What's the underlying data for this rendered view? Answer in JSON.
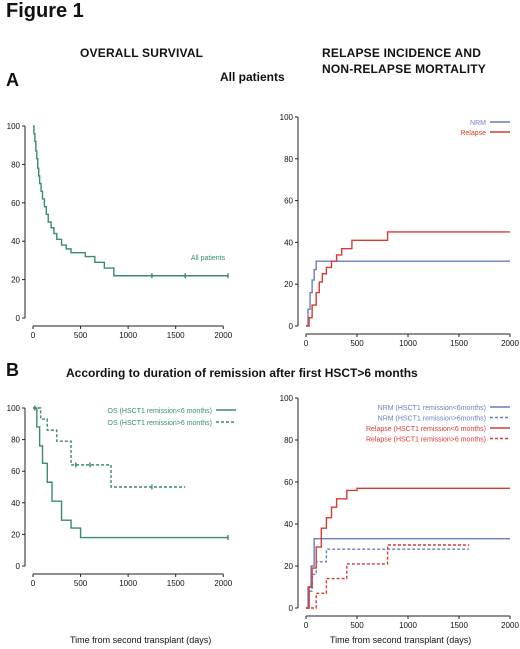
{
  "figure_title": "Figure 1",
  "overall_survival_title": "OVERALL SURVIVAL",
  "relapse_title_line1": "RELAPSE INCIDENCE AND",
  "relapse_title_line2": "NON-RELAPSE MORTALITY",
  "panel_a": {
    "letter": "A",
    "title": "All patients"
  },
  "panel_b": {
    "letter": "B",
    "title": "According to duration of remission after first HSCT>6 months"
  },
  "xlabel": "Time from second transplant (days)",
  "colors": {
    "green": "#3a8a6e",
    "blue": "#6a7fbf",
    "red": "#d93a2f",
    "axis": "#222222"
  },
  "chart_data": [
    {
      "id": "A-survival",
      "type": "line",
      "step": true,
      "xlim": [
        0,
        2050
      ],
      "ylim": [
        0,
        100
      ],
      "xticks": [
        0,
        500,
        1000,
        1500,
        2000
      ],
      "yticks": [
        0,
        20,
        40,
        60,
        80,
        100
      ],
      "grid": false,
      "series": [
        {
          "name": "All patients",
          "color": "green",
          "dash": false,
          "x": [
            0,
            10,
            20,
            30,
            40,
            50,
            60,
            70,
            85,
            100,
            120,
            140,
            160,
            190,
            220,
            250,
            300,
            350,
            400,
            450,
            550,
            650,
            750,
            850,
            2050
          ],
          "y": [
            100,
            96,
            92,
            87,
            83,
            78,
            74,
            70,
            66,
            62,
            58,
            54,
            50,
            47,
            44,
            41,
            38,
            36,
            34,
            34,
            32,
            29,
            26,
            22,
            22
          ],
          "censors_x": [
            1250,
            1600,
            2050
          ]
        }
      ]
    },
    {
      "id": "A-relapse-nrm",
      "type": "line",
      "step": true,
      "xlim": [
        0,
        2000
      ],
      "ylim": [
        0,
        100
      ],
      "xticks": [
        0,
        500,
        1000,
        1500,
        2000
      ],
      "yticks": [
        0,
        20,
        40,
        60,
        80,
        100
      ],
      "grid": false,
      "legend": "top-right",
      "series": [
        {
          "name": "NRM",
          "color": "blue",
          "dash": false,
          "x": [
            0,
            20,
            40,
            60,
            80,
            100,
            2000
          ],
          "y": [
            0,
            8,
            16,
            22,
            27,
            31,
            31
          ]
        },
        {
          "name": "Relapse",
          "color": "red",
          "dash": false,
          "x": [
            0,
            30,
            60,
            100,
            130,
            160,
            200,
            250,
            300,
            350,
            450,
            800,
            2000
          ],
          "y": [
            0,
            4,
            10,
            16,
            21,
            25,
            28,
            31,
            34,
            37,
            41,
            45,
            45
          ]
        }
      ]
    },
    {
      "id": "B-survival",
      "type": "line",
      "step": true,
      "xlim": [
        0,
        2050
      ],
      "ylim": [
        0,
        100
      ],
      "xticks": [
        0,
        500,
        1000,
        1500,
        2000
      ],
      "yticks": [
        0,
        20,
        40,
        60,
        80,
        100
      ],
      "grid": false,
      "legend": "top-right",
      "series": [
        {
          "name": "OS (HSCT1 remission<6 months)",
          "color": "green",
          "dash": false,
          "x": [
            0,
            40,
            70,
            100,
            150,
            200,
            300,
            400,
            500,
            2050
          ],
          "y": [
            100,
            88,
            76,
            65,
            53,
            41,
            29,
            24,
            18,
            18
          ],
          "censors_x": [
            2050
          ]
        },
        {
          "name": "OS (HSCT1 remission>6 months)",
          "color": "green",
          "dash": true,
          "x": [
            0,
            80,
            150,
            250,
            400,
            820,
            1600
          ],
          "y": [
            100,
            93,
            86,
            79,
            64,
            50,
            50
          ],
          "censors_x": [
            20,
            450,
            600,
            1250
          ]
        }
      ]
    },
    {
      "id": "B-relapse-nrm",
      "type": "line",
      "step": true,
      "xlim": [
        0,
        2000
      ],
      "ylim": [
        0,
        100
      ],
      "xticks": [
        0,
        500,
        1000,
        1500,
        2000
      ],
      "yticks": [
        0,
        20,
        40,
        60,
        80,
        100
      ],
      "grid": false,
      "legend": "top-right",
      "series": [
        {
          "name": "NRM (HSCT1 remission<6months)",
          "color": "blue",
          "dash": false,
          "x": [
            0,
            20,
            50,
            80,
            2000
          ],
          "y": [
            0,
            10,
            20,
            33,
            33
          ]
        },
        {
          "name": "NRM (HSCT1 remission>6months)",
          "color": "blue",
          "dash": true,
          "x": [
            0,
            30,
            60,
            100,
            200,
            1600
          ],
          "y": [
            0,
            8,
            16,
            22,
            28,
            28
          ]
        },
        {
          "name": "Relapse (HSCT1 remission<6 months)",
          "color": "red",
          "dash": false,
          "x": [
            0,
            30,
            60,
            100,
            150,
            200,
            250,
            300,
            400,
            500,
            2000
          ],
          "y": [
            0,
            10,
            19,
            29,
            38,
            43,
            48,
            52,
            56,
            57,
            57
          ]
        },
        {
          "name": "Relapse (HSCT1 remission>6 months)",
          "color": "red",
          "dash": true,
          "x": [
            0,
            100,
            200,
            400,
            800,
            1600
          ],
          "y": [
            0,
            7,
            14,
            21,
            30,
            30
          ]
        }
      ]
    }
  ]
}
